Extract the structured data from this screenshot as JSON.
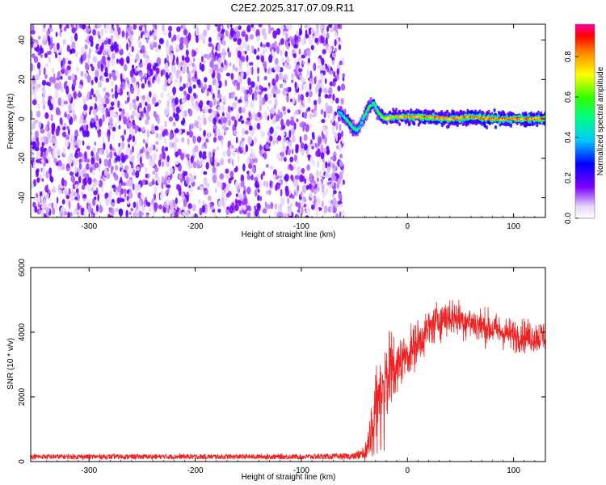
{
  "figure": {
    "title": "C2E2.2025.317.07.09.R11"
  },
  "chart_data": [
    {
      "type": "heatmap",
      "title": "C2E2.2025.317.07.09.R11",
      "xlabel": "Height of straight line (km)",
      "ylabel": "Frequency (Hz)",
      "xlim": [
        -355,
        130
      ],
      "ylim": [
        -50,
        48
      ],
      "xticks": [
        -300,
        -200,
        -100,
        0,
        100
      ],
      "xtick_labels": [
        "-300",
        "-200",
        "-100",
        "0",
        "100"
      ],
      "yticks": [
        -40,
        -20,
        0,
        20,
        40
      ],
      "ytick_labels": [
        "-40",
        "-20",
        "0",
        "20",
        "40"
      ],
      "noise_region": {
        "x_range": [
          -355,
          -60
        ],
        "description_level": "low amplitude, broadband"
      },
      "signal_track": {
        "x": [
          -65,
          -58,
          -52,
          -48,
          -44,
          -40,
          -36,
          -32,
          -28,
          -24,
          -20,
          -15,
          -10,
          0,
          20,
          40,
          60,
          80,
          100,
          120,
          130
        ],
        "y": [
          4,
          0,
          -4,
          -6,
          -3,
          2,
          6,
          8,
          4,
          1,
          0,
          1,
          1,
          1,
          1,
          0,
          1,
          0,
          0,
          0,
          0
        ],
        "peak_amplitude": [
          0.45,
          0.55,
          0.6,
          0.55,
          0.5,
          0.55,
          0.6,
          0.55,
          0.6,
          0.7,
          0.8,
          0.85,
          0.9,
          0.9,
          0.95,
          0.9,
          0.95,
          0.95,
          0.95,
          0.95,
          0.95
        ]
      },
      "colorbar": {
        "label": "Normalized spectral amplitude",
        "range": [
          0.0,
          0.96
        ],
        "ticks": [
          0.0,
          0.2,
          0.4,
          0.6,
          0.8
        ],
        "tick_labels": [
          "0.0",
          "0.2",
          "0.4",
          "0.6",
          "0.8"
        ]
      }
    },
    {
      "type": "line",
      "xlabel": "Height of straight line (km)",
      "ylabel": "SNR (10 * v/v)",
      "xlim": [
        -355,
        130
      ],
      "ylim": [
        0,
        6000
      ],
      "xticks": [
        -300,
        -200,
        -100,
        0,
        100
      ],
      "xtick_labels": [
        "-300",
        "-200",
        "-100",
        "0",
        "100"
      ],
      "yticks": [
        0,
        2000,
        4000,
        6000
      ],
      "ytick_labels": [
        "0",
        "2000",
        "4000",
        "6000"
      ],
      "series": [
        {
          "name": "SNR",
          "color": "#ee2222",
          "x": [
            -355,
            -300,
            -200,
            -100,
            -50,
            -40,
            -35,
            -30,
            -25,
            -20,
            -15,
            -10,
            -5,
            0,
            10,
            20,
            30,
            40,
            50,
            60,
            70,
            80,
            90,
            100,
            110,
            120,
            130
          ],
          "mean": [
            150,
            150,
            150,
            150,
            160,
            300,
            900,
            1800,
            2300,
            2700,
            2900,
            3000,
            3200,
            3300,
            3700,
            4100,
            4400,
            4500,
            4400,
            4300,
            4200,
            4100,
            4000,
            3900,
            3900,
            3850,
            3900
          ],
          "spread": [
            80,
            80,
            80,
            80,
            100,
            250,
            600,
            900,
            1200,
            1300,
            1200,
            800,
            700,
            700,
            700,
            600,
            600,
            600,
            550,
            550,
            550,
            500,
            500,
            500,
            500,
            500,
            500
          ]
        }
      ],
      "annotations": [
        {
          "x": -18,
          "y": 6000,
          "text": ""
        }
      ]
    }
  ]
}
